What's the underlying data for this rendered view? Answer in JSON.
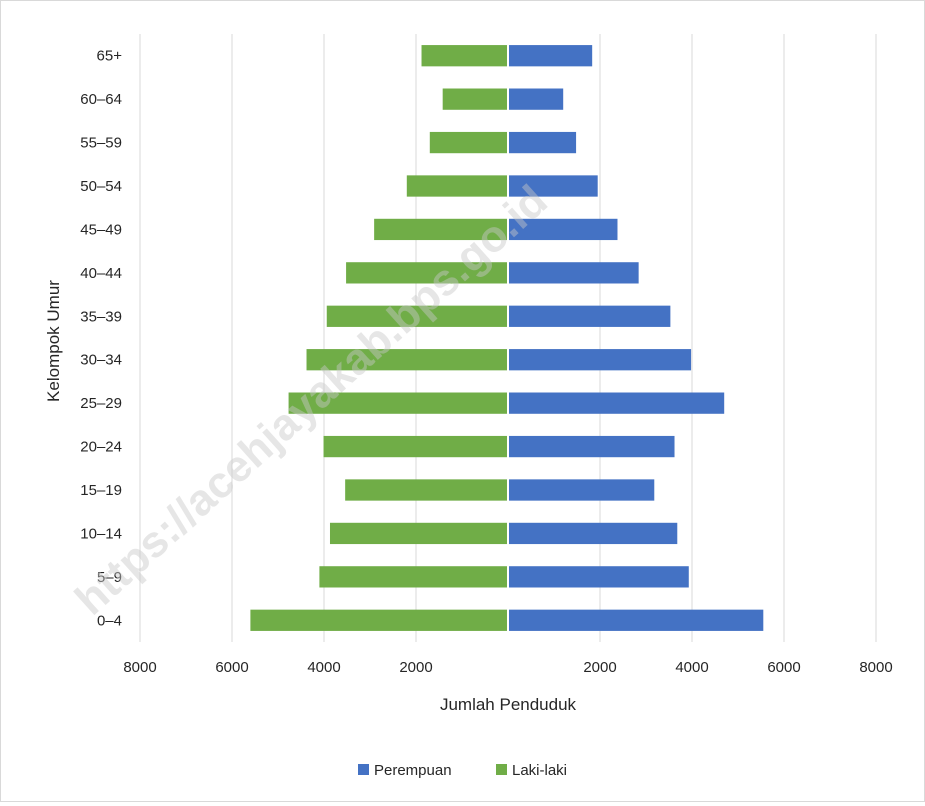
{
  "chart_data": {
    "type": "bar",
    "orientation": "horizontal",
    "categories": [
      "0–4",
      "5–9",
      "10–14",
      "15–19",
      "20–24",
      "25–29",
      "30–34",
      "35–39",
      "40–44",
      "45–49",
      "50–54",
      "55–59",
      "60–64",
      "65+"
    ],
    "series": [
      {
        "name": "Perempuan",
        "color": "#4472c4",
        "values": [
          5550,
          3930,
          3680,
          3180,
          3620,
          4700,
          3980,
          3530,
          2840,
          2380,
          1950,
          1480,
          1200,
          1830
        ]
      },
      {
        "name": "Laki-laki",
        "color": "#70ad47",
        "values": [
          -5600,
          -4100,
          -3870,
          -3540,
          -4010,
          -4770,
          -4380,
          -3940,
          -3520,
          -2910,
          -2200,
          -1700,
          -1420,
          -1880
        ]
      }
    ],
    "xlim": [
      -8000,
      8000
    ],
    "x_ticks": [
      -8000,
      -6000,
      -4000,
      -2000,
      2000,
      4000,
      6000,
      8000
    ],
    "x_tick_labels": [
      "8000",
      "6000",
      "4000",
      "2000",
      "2000",
      "4000",
      "6000",
      "8000"
    ],
    "xlabel": "Jumlah Penduduk",
    "ylabel": "Kelompok Umur",
    "grid": true,
    "legend_position": "bottom"
  },
  "watermark": "https://acehjayakab.bps.go.id"
}
